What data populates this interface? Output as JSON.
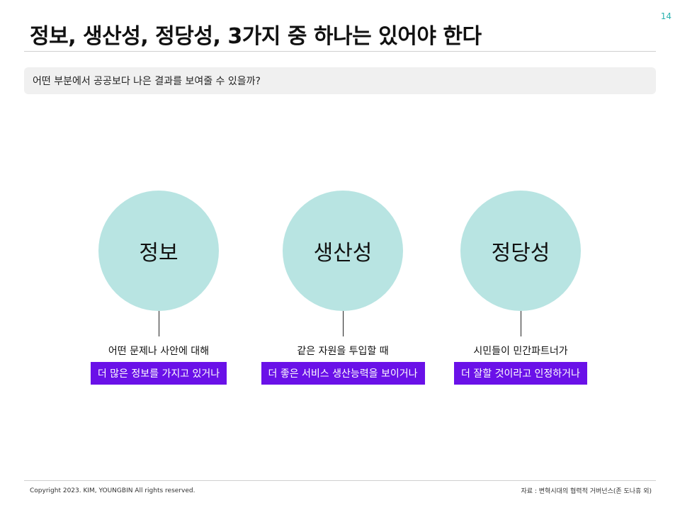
{
  "page_number": "14",
  "title": "정보, 생산성, 정당성, 3가지 중 하나는 있어야 한다",
  "question": "어떤 부분에서 공공보다 나은 결과를 보여줄 수 있을까?",
  "columns": [
    {
      "circle": "정보",
      "caption": "어떤 문제나 사안에 대해",
      "highlight": "더 많은 정보를 가지고 있거나"
    },
    {
      "circle": "생산성",
      "caption": "같은 자원을 투입할 때",
      "highlight": "더 좋은 서비스 생산능력을 보이거나"
    },
    {
      "circle": "정당성",
      "caption": "시민들이 민간파트너가",
      "highlight": "더 잘할 것이라고 인정하거나"
    }
  ],
  "footer": {
    "copyright": "Copyright 2023. KIM, YOUNGBIN All rights reserved.",
    "source": "자료 : 변혁시대의 협력적 거버넌스(존 도나휴 외)"
  },
  "colors": {
    "accent_teal": "#b8e4e2",
    "highlight_purple": "#6a11e8",
    "page_number": "#2bb3b0"
  }
}
